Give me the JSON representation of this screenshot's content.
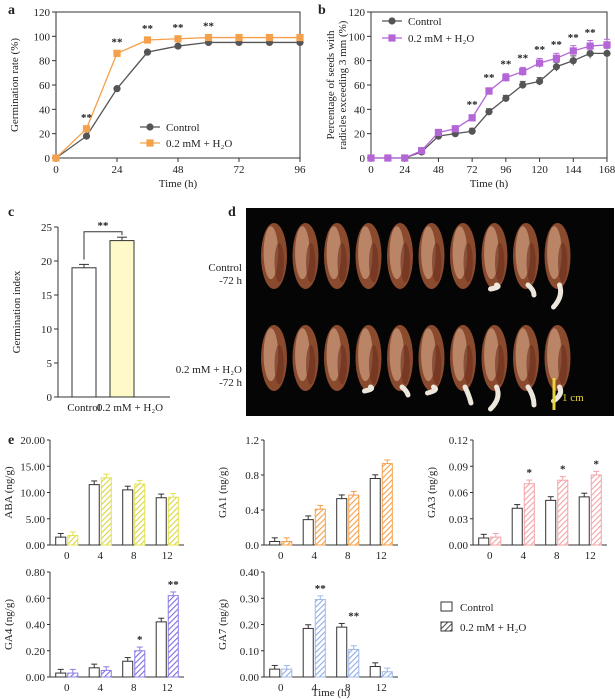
{
  "colors": {
    "control": "#555555",
    "treated": "#f5a04a",
    "purple": "#b566d6",
    "yellowish": "#fff9c9"
  },
  "panel_labels": {
    "a": "a",
    "b": "b",
    "c": "c",
    "d": "d",
    "e": "e"
  },
  "photo": {
    "control_label_1": "Control",
    "control_label_2": "-72 h",
    "treated_label_1": "0.2 mM + H₂O",
    "treated_label_2": "-72 h",
    "scale_bar": "1 cm"
  },
  "chart_data": [
    {
      "id": "a",
      "type": "line",
      "xlabel": "Time (h)",
      "ylabel": "Germination rate (%)",
      "xlim": [
        0,
        96
      ],
      "ylim": [
        0,
        120
      ],
      "xticks": [
        "0",
        "24",
        "48",
        "72",
        "96"
      ],
      "yticks": [
        "0",
        "20",
        "40",
        "60",
        "80",
        "100",
        "120"
      ],
      "x": [
        0,
        12,
        24,
        36,
        48,
        60,
        72,
        84,
        96
      ],
      "series": [
        {
          "name": "Control",
          "values": [
            0,
            18,
            57,
            87,
            92,
            95,
            95,
            95,
            95
          ]
        },
        {
          "name": "0.2 mM + H₂O",
          "values": [
            0,
            24,
            86,
            97,
            98,
            99,
            99,
            99,
            99
          ]
        }
      ],
      "annotations": [
        "**",
        "**",
        "**",
        "**",
        "**"
      ]
    },
    {
      "id": "b",
      "type": "line",
      "xlabel": "Time (h)",
      "ylabel_1": "Percentage of seeds with",
      "ylabel_2": "radicles exceeding 3 mm (%)",
      "xlim": [
        0,
        168
      ],
      "ylim": [
        0,
        120
      ],
      "xticks": [
        "0",
        "24",
        "48",
        "72",
        "96",
        "120",
        "144",
        "168"
      ],
      "yticks": [
        "0",
        "20",
        "40",
        "60",
        "80",
        "100",
        "120"
      ],
      "x": [
        0,
        12,
        24,
        36,
        48,
        60,
        72,
        84,
        96,
        108,
        120,
        132,
        144,
        156,
        168
      ],
      "series": [
        {
          "name": "Control",
          "values": [
            0,
            0,
            0,
            5,
            18,
            20,
            22,
            38,
            49,
            60,
            63,
            75,
            80,
            86,
            86
          ]
        },
        {
          "name": "0.2 mM + H₂O",
          "values": [
            0,
            0,
            0,
            6,
            21,
            24,
            33,
            55,
            66,
            71,
            78,
            82,
            88,
            92,
            93
          ]
        }
      ],
      "annotations": [
        "**",
        "**",
        "**",
        "**",
        "**",
        "**",
        "**",
        "**"
      ]
    },
    {
      "id": "c",
      "type": "bar",
      "ylabel": "Germination index",
      "categories": [
        "Control",
        "0.2 mM + H₂O"
      ],
      "values": [
        19.0,
        23.0
      ],
      "ylim": [
        0,
        25
      ],
      "yticks": [
        "0",
        "5",
        "10",
        "15",
        "20",
        "25"
      ],
      "annotation": "**"
    },
    {
      "id": "aba",
      "type": "bar",
      "ylabel": "ABA (ng/g)",
      "categories": [
        "0",
        "4",
        "8",
        "12"
      ],
      "series": [
        {
          "name": "Control",
          "values": [
            1.5,
            11.5,
            10.5,
            9.0
          ]
        },
        {
          "name": "0.2 mM + H₂O",
          "values": [
            1.8,
            12.8,
            11.6,
            9.1
          ]
        }
      ],
      "ylim": [
        0,
        20
      ],
      "yticks": [
        "0.00",
        "5.00",
        "10.00",
        "15.00",
        "20.00"
      ],
      "stars": [
        "",
        "",
        "",
        ""
      ],
      "color": "#e4e34e"
    },
    {
      "id": "ga1",
      "type": "bar",
      "ylabel": "GA1 (ng/g)",
      "categories": [
        "0",
        "4",
        "8",
        "12"
      ],
      "series": [
        {
          "name": "Control",
          "values": [
            0.04,
            0.29,
            0.53,
            0.76
          ]
        },
        {
          "name": "0.2 mM + H₂O",
          "values": [
            0.04,
            0.41,
            0.57,
            0.93
          ]
        }
      ],
      "ylim": [
        0,
        1.2
      ],
      "yticks": [
        "0.0",
        "0.4",
        "0.8",
        "1.2"
      ],
      "stars": [
        "",
        "",
        "",
        ""
      ],
      "color": "#f5a04a"
    },
    {
      "id": "ga3",
      "type": "bar",
      "ylabel": "GA3 (ng/g)",
      "categories": [
        "0",
        "4",
        "8",
        "12"
      ],
      "series": [
        {
          "name": "Control",
          "values": [
            0.008,
            0.042,
            0.051,
            0.055
          ]
        },
        {
          "name": "0.2 mM + H₂O",
          "values": [
            0.009,
            0.07,
            0.074,
            0.08
          ]
        }
      ],
      "ylim": [
        0,
        0.12
      ],
      "yticks": [
        "0.00",
        "0.03",
        "0.06",
        "0.09",
        "0.12"
      ],
      "stars": [
        "",
        "*",
        "*",
        "*"
      ],
      "color": "#f3a3a8"
    },
    {
      "id": "ga4",
      "type": "bar",
      "ylabel": "GA4 (ng/g)",
      "categories": [
        "0",
        "4",
        "8",
        "12"
      ],
      "series": [
        {
          "name": "Control",
          "values": [
            0.03,
            0.07,
            0.12,
            0.42
          ]
        },
        {
          "name": "0.2 mM + H₂O",
          "values": [
            0.03,
            0.05,
            0.2,
            0.62
          ]
        }
      ],
      "ylim": [
        0,
        0.8
      ],
      "yticks": [
        "0.00",
        "0.20",
        "0.40",
        "0.60",
        "0.80"
      ],
      "stars": [
        "",
        "",
        "*",
        "**"
      ],
      "color": "#8b7fe6"
    },
    {
      "id": "ga7",
      "type": "bar",
      "ylabel": "GA7 (ng/g)",
      "categories": [
        "0",
        "4",
        "8",
        "12"
      ],
      "series": [
        {
          "name": "Control",
          "values": [
            0.03,
            0.185,
            0.19,
            0.04
          ]
        },
        {
          "name": "0.2 mM + H₂O",
          "values": [
            0.03,
            0.295,
            0.105,
            0.02
          ]
        }
      ],
      "ylim": [
        0,
        0.4
      ],
      "yticks": [
        "0.00",
        "0.10",
        "0.20",
        "0.30",
        "0.40"
      ],
      "stars": [
        "",
        "**",
        "**",
        ""
      ],
      "color": "#9fb8ea",
      "xlabel": "Time (h)"
    }
  ],
  "legend_e": {
    "control": "Control",
    "treated": "0.2 mM + H₂O"
  }
}
